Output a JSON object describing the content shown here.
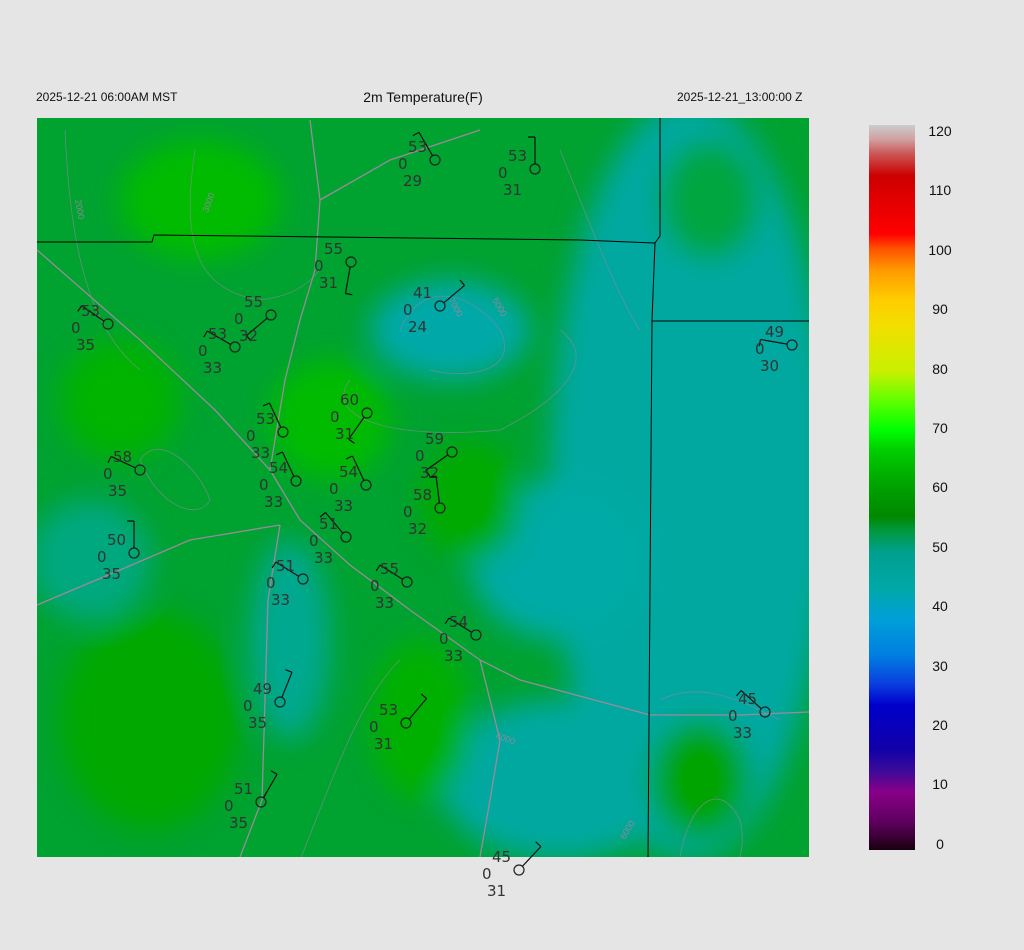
{
  "header": {
    "local_time": "2025-12-21 06:00AM MST",
    "title": "2m Temperature(F)",
    "utc_time": "2025-12-21_13:00:00 Z"
  },
  "colorbar": {
    "range": [
      0,
      120
    ],
    "tick_labels": [
      "120",
      "110",
      "100",
      "90",
      "80",
      "70",
      "60",
      "50",
      "40",
      "30",
      "20",
      "10",
      "0"
    ]
  },
  "contour_labels": [
    "2000",
    "3000",
    "4000",
    "5000",
    "6000",
    "7000"
  ],
  "stations": [
    {
      "temp": "53",
      "mid": "0",
      "dew": "29",
      "wind_dir": 330
    },
    {
      "temp": "53",
      "mid": "0",
      "dew": "31",
      "wind_dir": 0
    },
    {
      "temp": "55",
      "mid": "0",
      "dew": "31",
      "wind_dir": 190
    },
    {
      "temp": "41",
      "mid": "0",
      "dew": "24",
      "wind_dir": 50
    },
    {
      "temp": "55",
      "mid": "0",
      "dew": "32",
      "wind_dir": 230
    },
    {
      "temp": "53",
      "mid": "0",
      "dew": "35",
      "wind_dir": 305
    },
    {
      "temp": "53",
      "mid": "0",
      "dew": "33",
      "wind_dir": 300
    },
    {
      "temp": "49",
      "mid": "0",
      "dew": "30",
      "wind_dir": 280
    },
    {
      "temp": "60",
      "mid": "0",
      "dew": "31",
      "wind_dir": 215
    },
    {
      "temp": "53",
      "mid": "0",
      "dew": "33",
      "wind_dir": 335
    },
    {
      "temp": "59",
      "mid": "0",
      "dew": "32",
      "wind_dir": 235
    },
    {
      "temp": "58",
      "mid": "0",
      "dew": "35",
      "wind_dir": 295
    },
    {
      "temp": "54",
      "mid": "0",
      "dew": "33",
      "wind_dir": 335
    },
    {
      "temp": "54",
      "mid": "0",
      "dew": "33",
      "wind_dir": 335
    },
    {
      "temp": "58",
      "mid": "0",
      "dew": "32",
      "wind_dir": 353
    },
    {
      "temp": "51",
      "mid": "0",
      "dew": "33",
      "wind_dir": 320
    },
    {
      "temp": "50",
      "mid": "0",
      "dew": "35",
      "wind_dir": 0
    },
    {
      "temp": "51",
      "mid": "0",
      "dew": "33",
      "wind_dir": 302
    },
    {
      "temp": "55",
      "mid": "0",
      "dew": "33",
      "wind_dir": 302
    },
    {
      "temp": "54",
      "mid": "0",
      "dew": "33",
      "wind_dir": 302
    },
    {
      "temp": "49",
      "mid": "0",
      "dew": "35",
      "wind_dir": 22
    },
    {
      "temp": "53",
      "mid": "0",
      "dew": "31",
      "wind_dir": 40
    },
    {
      "temp": "45",
      "mid": "0",
      "dew": "33",
      "wind_dir": 312
    },
    {
      "temp": "51",
      "mid": "0",
      "dew": "35",
      "wind_dir": 30
    },
    {
      "temp": "45",
      "mid": "0",
      "dew": "31",
      "wind_dir": 43
    }
  ],
  "colors": {
    "background": "#e5e5e5",
    "station": "#333333",
    "boundary": "#000000",
    "road": "#9a8a9a"
  }
}
